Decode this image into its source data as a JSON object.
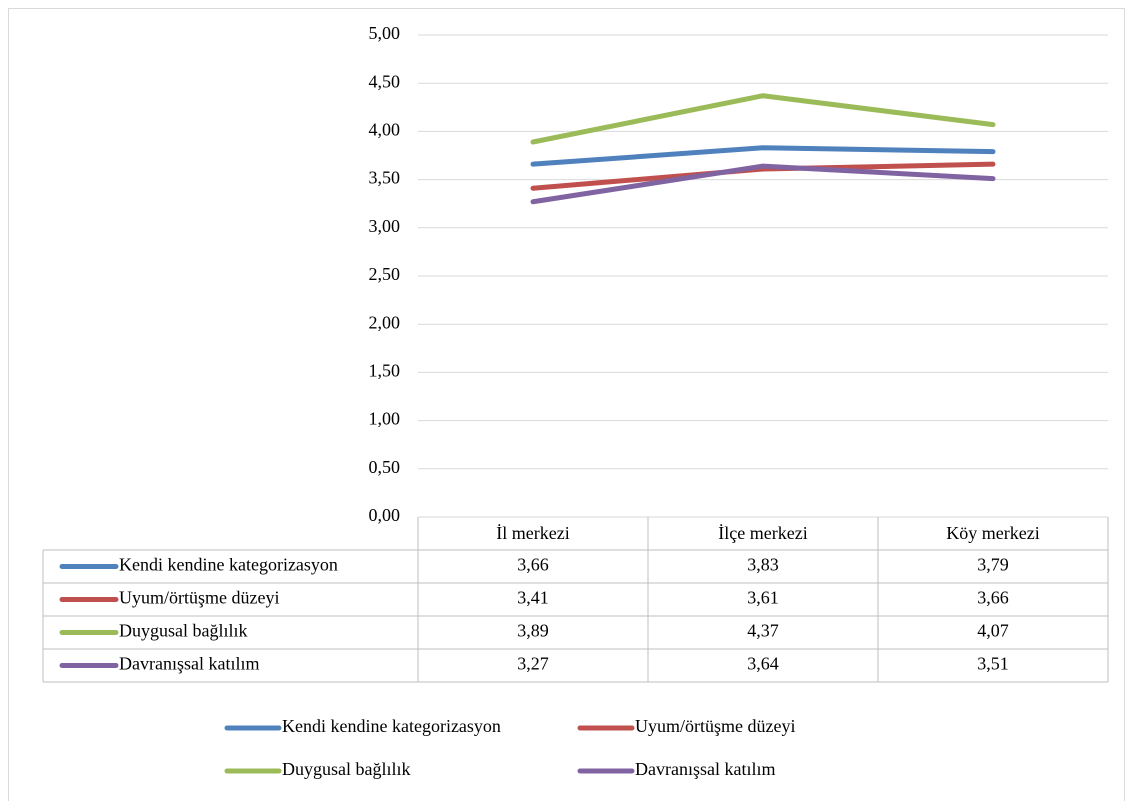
{
  "chart_data": {
    "type": "line",
    "categories": [
      "İl merkezi",
      "İlçe merkezi",
      "Köy merkezi"
    ],
    "series": [
      {
        "name": "Kendi kendine kategorizasyon",
        "color": "#4f81bd",
        "values": [
          3.66,
          3.83,
          3.79
        ],
        "value_labels": [
          "3,66",
          "3,83",
          "3,79"
        ]
      },
      {
        "name": "Uyum/örtüşme düzeyi",
        "color": "#c0504d",
        "values": [
          3.41,
          3.61,
          3.66
        ],
        "value_labels": [
          "3,41",
          "3,61",
          "3,66"
        ]
      },
      {
        "name": "Duygusal bağlılık",
        "color": "#9bbb59",
        "values": [
          3.89,
          4.37,
          4.07
        ],
        "value_labels": [
          "3,89",
          "4,37",
          "4,07"
        ]
      },
      {
        "name": "Davranışsal katılım",
        "color": "#8064a2",
        "values": [
          3.27,
          3.64,
          3.51
        ],
        "value_labels": [
          "3,27",
          "3,64",
          "3,51"
        ]
      }
    ],
    "ylim": [
      0,
      5
    ],
    "yticks": [
      {
        "value": 0,
        "label": "0,00"
      },
      {
        "value": 0.5,
        "label": "0,50"
      },
      {
        "value": 1,
        "label": "1,00"
      },
      {
        "value": 1.5,
        "label": "1,50"
      },
      {
        "value": 2,
        "label": "2,00"
      },
      {
        "value": 2.5,
        "label": "2,50"
      },
      {
        "value": 3,
        "label": "3,00"
      },
      {
        "value": 3.5,
        "label": "3,50"
      },
      {
        "value": 4,
        "label": "4,00"
      },
      {
        "value": 4.5,
        "label": "4,50"
      },
      {
        "value": 5,
        "label": "5,00"
      }
    ],
    "grid": true,
    "data_table": true,
    "legend": "bottom"
  }
}
